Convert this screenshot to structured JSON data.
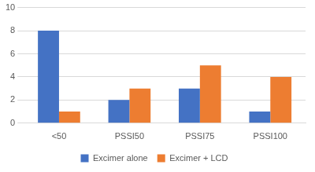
{
  "chart_data": {
    "type": "bar",
    "categories": [
      "<50",
      "PSSI50",
      "PSSI75",
      "PSSI100"
    ],
    "series": [
      {
        "name": "Excimer alone",
        "color": "#4472c4",
        "values": [
          8,
          2,
          3,
          1
        ]
      },
      {
        "name": "Excimer + LCD",
        "color": "#ed7d31",
        "values": [
          1,
          3,
          5,
          4
        ]
      }
    ],
    "ylim": [
      0,
      10
    ],
    "yticks": [
      0,
      2,
      4,
      6,
      8,
      10
    ],
    "grid": true,
    "legend": "bottom"
  }
}
